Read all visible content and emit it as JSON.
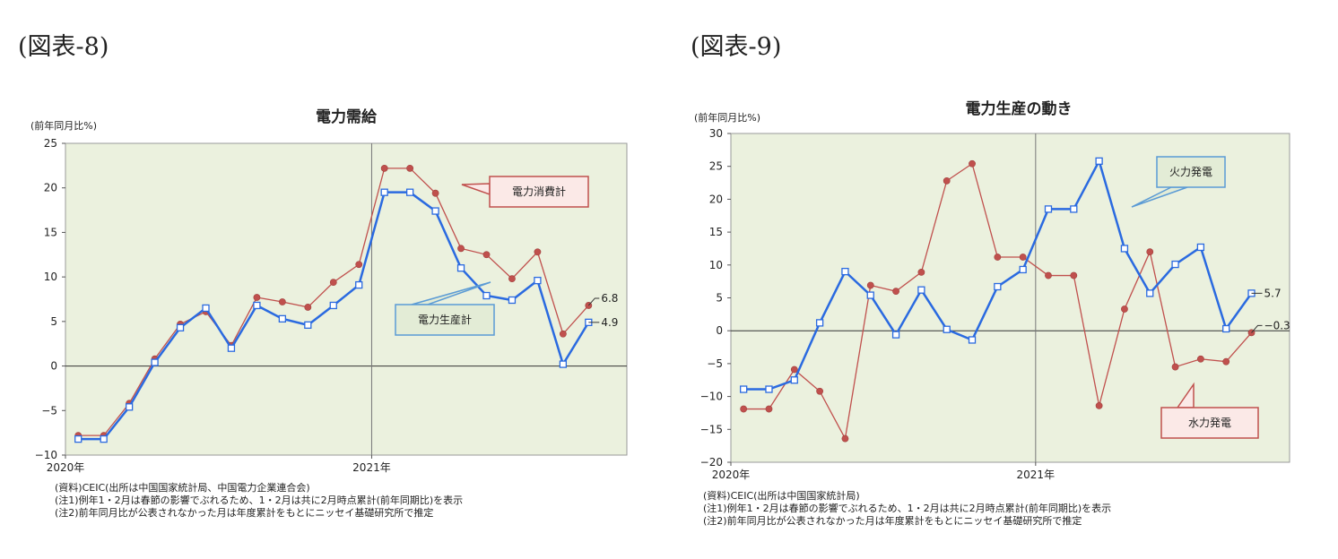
{
  "figures": [
    {
      "label": "(図表-8)",
      "notes": [
        "(資料)CEIC(出所は中国国家統計局、中国電力企業連合会)",
        "(注1)例年1・2月は春節の影響でぶれるため、1・2月は共に2月時点累計(前年同期比)を表示",
        "(注2)前年同月比が公表されなかった月は年度累計をもとにニッセイ基礎研究所で推定"
      ]
    },
    {
      "label": "(図表-9)",
      "notes": [
        "(資料)CEIC(出所は中国国家統計局)",
        "(注1)例年1・2月は春節の影響でぶれるため、1・2月は共に2月時点累計(前年同期比)を表示",
        "(注2)前年同月比が公表されなかった月は年度累計をもとにニッセイ基礎研究所で推定"
      ]
    }
  ],
  "chart_data": [
    {
      "type": "line",
      "title": "電力需給",
      "ylabel": "(前年同月比%)",
      "ylim": [
        -10,
        25
      ],
      "yticks": [
        -10,
        -5,
        0,
        5,
        10,
        15,
        20,
        25
      ],
      "x": [
        "2020-01",
        "2020-02",
        "2020-03",
        "2020-04",
        "2020-05",
        "2020-06",
        "2020-07",
        "2020-08",
        "2020-09",
        "2020-10",
        "2020-11",
        "2020-12",
        "2021-01",
        "2021-02",
        "2021-03",
        "2021-04",
        "2021-05",
        "2021-06",
        "2021-07",
        "2021-08",
        "2021-09",
        "2021-10"
      ],
      "x_tick_labels": [
        {
          "at": "2020-01",
          "label": "2020年"
        },
        {
          "at": "2021-01",
          "label": "2021年"
        }
      ],
      "vline_at": "2021-01",
      "grid": false,
      "series": [
        {
          "name": "電力消費計",
          "color": "#c0504d",
          "marker": "dot",
          "end_label": "6.8",
          "values": [
            -7.8,
            -7.8,
            -4.2,
            0.8,
            4.7,
            6.1,
            2.3,
            7.7,
            7.2,
            6.6,
            9.4,
            11.4,
            22.2,
            22.2,
            19.4,
            13.2,
            12.5,
            9.8,
            12.8,
            3.6,
            6.8,
            null
          ]
        },
        {
          "name": "電力生産計",
          "color": "#2a6ae0",
          "marker": "square",
          "end_label": "4.9",
          "values": [
            -8.2,
            -8.2,
            -4.6,
            0.4,
            4.3,
            6.5,
            2.0,
            6.8,
            5.3,
            4.6,
            6.8,
            9.1,
            19.5,
            19.5,
            17.4,
            11.0,
            7.9,
            7.4,
            9.6,
            0.2,
            4.9,
            null
          ]
        }
      ],
      "annotations": [
        {
          "text": "電力消費計",
          "series": "電力消費計"
        },
        {
          "text": "電力生産計",
          "series": "電力生産計"
        }
      ]
    },
    {
      "type": "line",
      "title": "電力生産の動き",
      "ylabel": "(前年同月比%)",
      "ylim": [
        -20,
        30
      ],
      "yticks": [
        -20,
        -15,
        -10,
        -5,
        0,
        5,
        10,
        15,
        20,
        25,
        30
      ],
      "x": [
        "2020-01",
        "2020-02",
        "2020-03",
        "2020-04",
        "2020-05",
        "2020-06",
        "2020-07",
        "2020-08",
        "2020-09",
        "2020-10",
        "2020-11",
        "2020-12",
        "2021-01",
        "2021-02",
        "2021-03",
        "2021-04",
        "2021-05",
        "2021-06",
        "2021-07",
        "2021-08",
        "2021-09",
        "2021-10"
      ],
      "x_tick_labels": [
        {
          "at": "2020-01",
          "label": "2020年"
        },
        {
          "at": "2021-01",
          "label": "2021年"
        }
      ],
      "vline_at": "2021-01",
      "grid": false,
      "series": [
        {
          "name": "火力発電",
          "color": "#2a6ae0",
          "marker": "square",
          "end_label": "5.7",
          "values": [
            -8.9,
            -8.9,
            -7.5,
            1.2,
            9.0,
            5.4,
            -0.6,
            6.2,
            0.2,
            -1.4,
            6.7,
            9.3,
            18.5,
            18.5,
            25.8,
            12.5,
            5.7,
            10.1,
            12.7,
            0.3,
            5.7,
            null
          ]
        },
        {
          "name": "水力発電",
          "color": "#c0504d",
          "marker": "dot",
          "end_label": "-0.3",
          "values": [
            -11.9,
            -11.9,
            -5.9,
            -9.2,
            -16.4,
            6.9,
            6.0,
            8.9,
            22.8,
            25.4,
            11.2,
            11.2,
            8.4,
            8.4,
            -11.4,
            3.3,
            12.0,
            -5.5,
            -4.3,
            -4.7,
            -0.3,
            null
          ]
        }
      ],
      "annotations": [
        {
          "text": "火力発電",
          "series": "火力発電"
        },
        {
          "text": "水力発電",
          "series": "水力発電"
        }
      ]
    }
  ]
}
